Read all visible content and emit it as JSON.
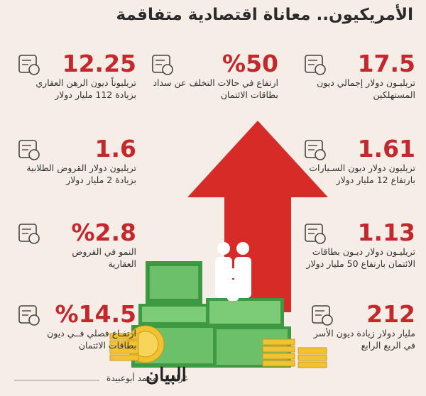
{
  "header": {
    "title": "الأمريكيون.. معاناة اقتصادية متفاقمة"
  },
  "items": [
    {
      "value": "17.5",
      "lines": [
        "تريليـون دولار إجمالي ديون",
        "المستهلكين"
      ]
    },
    {
      "value": "%50",
      "lines": [
        "ارتفاع في حالات التخلف عن سداد",
        "بطاقات الائتمان"
      ]
    },
    {
      "value": "12.25",
      "lines": [
        "تريليوناً ديون الرهن العقاري",
        "بزيادة 112 مليار دولار"
      ]
    },
    {
      "value": "1.61",
      "lines": [
        "تريليون دولار ديون السـيارات",
        "بارتفاع 12 مليار دولار"
      ]
    },
    {
      "value": "1.6",
      "lines": [
        "تريليون دولار القروض الطلابية",
        "بزيادة 2 مليار دولار"
      ]
    },
    {
      "value": "1.13",
      "lines": [
        "تريليـون دولار ديـون بطاقات",
        "الائتمان بارتفاع 50 مليار دولار"
      ]
    },
    {
      "value": "%2.8",
      "lines": [
        "النمو في القروض",
        "العقارية"
      ]
    },
    {
      "value": "212",
      "lines": [
        "مليار دولار زيادة ديون الأسر",
        "في الربع الرابع"
      ]
    },
    {
      "value": "%14.5",
      "lines": [
        "ارتفـاع فصلي فــي ديون",
        "بطاقات الائتمان"
      ]
    }
  ],
  "footer": {
    "credit": "غرافيك: محمد أبوعبيدة",
    "logo": "البيان"
  }
}
